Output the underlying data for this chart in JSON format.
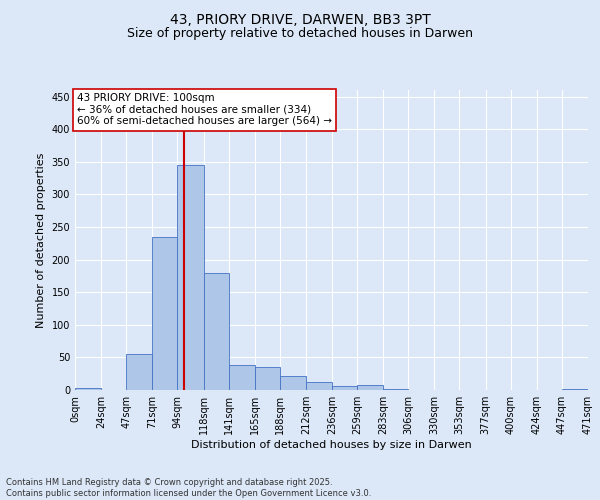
{
  "title1": "43, PRIORY DRIVE, DARWEN, BB3 3PT",
  "title2": "Size of property relative to detached houses in Darwen",
  "xlabel": "Distribution of detached houses by size in Darwen",
  "ylabel": "Number of detached properties",
  "bar_color": "#aec6e8",
  "bar_edge_color": "#4472c4",
  "background_color": "#dce8f8",
  "grid_color": "#ffffff",
  "bins": [
    0,
    24,
    47,
    71,
    94,
    118,
    141,
    165,
    188,
    212,
    236,
    259,
    283,
    306,
    330,
    353,
    377,
    400,
    424,
    447,
    471
  ],
  "bin_labels": [
    "0sqm",
    "24sqm",
    "47sqm",
    "71sqm",
    "94sqm",
    "118sqm",
    "141sqm",
    "165sqm",
    "188sqm",
    "212sqm",
    "236sqm",
    "259sqm",
    "283sqm",
    "306sqm",
    "330sqm",
    "353sqm",
    "377sqm",
    "400sqm",
    "424sqm",
    "447sqm",
    "471sqm"
  ],
  "counts": [
    3,
    0,
    55,
    235,
    345,
    180,
    38,
    35,
    21,
    13,
    6,
    8,
    1,
    0,
    0,
    0,
    0,
    0,
    0,
    2
  ],
  "vline_x": 100,
  "vline_color": "#cc0000",
  "annotation_text": "43 PRIORY DRIVE: 100sqm\n← 36% of detached houses are smaller (334)\n60% of semi-detached houses are larger (564) →",
  "annotation_box_color": "#ffffff",
  "annotation_box_edge_color": "#cc0000",
  "ylim": [
    0,
    460
  ],
  "yticks": [
    0,
    50,
    100,
    150,
    200,
    250,
    300,
    350,
    400,
    450
  ],
  "footer_text": "Contains HM Land Registry data © Crown copyright and database right 2025.\nContains public sector information licensed under the Open Government Licence v3.0.",
  "title_fontsize": 10,
  "subtitle_fontsize": 9,
  "label_fontsize": 8,
  "tick_fontsize": 7,
  "annotation_fontsize": 7.5,
  "footer_fontsize": 6
}
